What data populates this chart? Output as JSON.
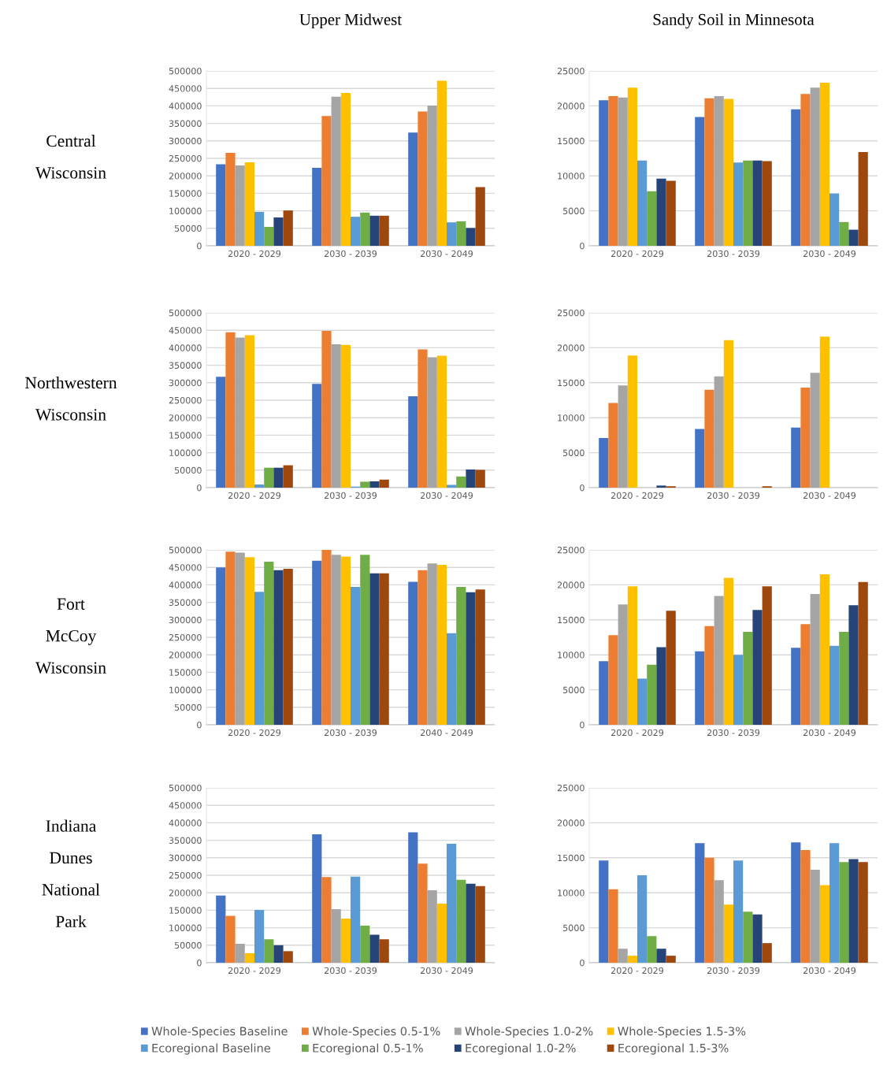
{
  "chart_data": [
    {
      "type": "bar",
      "legend": "bottom",
      "title": "Upper Midwest",
      "ylabel": "Central Wisconsin",
      "categories": [
        "2020 - 2029",
        "2030 - 2039",
        "2030 - 2049"
      ],
      "ylim": [
        0,
        500000
      ],
      "yticks": [
        0,
        50000,
        100000,
        150000,
        200000,
        250000,
        300000,
        350000,
        400000,
        450000,
        500000
      ],
      "grid": "y",
      "series": [
        {
          "name": "Whole-Species Baseline",
          "color": "#4472c4",
          "values": [
            233000,
            223000,
            324000
          ]
        },
        {
          "name": "Whole-Species 0.5-1%",
          "color": "#ed7d31",
          "values": [
            266000,
            371000,
            384000
          ]
        },
        {
          "name": "Whole-Species 1.0-2%",
          "color": "#a5a5a5",
          "values": [
            230000,
            426000,
            401000
          ]
        },
        {
          "name": "Whole-Species 1.5-3%",
          "color": "#ffc000",
          "values": [
            239000,
            437000,
            472000
          ]
        },
        {
          "name": "Ecoregional Baseline",
          "color": "#5b9bd5",
          "values": [
            97000,
            83000,
            67000
          ]
        },
        {
          "name": "Ecoregional 0.5-1%",
          "color": "#70ad47",
          "values": [
            54000,
            95000,
            70000
          ]
        },
        {
          "name": "Ecoregional 1.0-2%",
          "color": "#264478",
          "values": [
            81000,
            86000,
            51000
          ]
        },
        {
          "name": "Ecoregional 1.5-3%",
          "color": "#9e480e",
          "values": [
            101000,
            86000,
            168000
          ]
        }
      ]
    },
    {
      "type": "bar",
      "title": "Sandy Soil in Minnesota",
      "categories": [
        "2020 - 2029",
        "2030 - 2039",
        "2030 - 2049"
      ],
      "ylim": [
        0,
        25000
      ],
      "yticks": [
        0,
        5000,
        10000,
        15000,
        20000,
        25000
      ],
      "grid": "y",
      "series": [
        {
          "color": "#4472c4",
          "values": [
            20800,
            18400,
            19500
          ]
        },
        {
          "color": "#ed7d31",
          "values": [
            21400,
            21100,
            21700
          ]
        },
        {
          "color": "#a5a5a5",
          "values": [
            21200,
            21400,
            22600
          ]
        },
        {
          "color": "#ffc000",
          "values": [
            22600,
            21000,
            23300
          ]
        },
        {
          "color": "#5b9bd5",
          "values": [
            12200,
            11900,
            7500
          ]
        },
        {
          "color": "#70ad47",
          "values": [
            7800,
            12200,
            3400
          ]
        },
        {
          "color": "#264478",
          "values": [
            9600,
            12200,
            2300
          ]
        },
        {
          "color": "#9e480e",
          "values": [
            9300,
            12100,
            13400
          ]
        }
      ]
    },
    {
      "type": "bar",
      "ylabel": "Northwestern Wisconsin",
      "categories": [
        "2020 - 2029",
        "2030 - 2039",
        "2030 - 2049"
      ],
      "ylim": [
        0,
        500000
      ],
      "yticks": [
        0,
        50000,
        100000,
        150000,
        200000,
        250000,
        300000,
        350000,
        400000,
        450000,
        500000
      ],
      "grid": "y",
      "series": [
        {
          "color": "#4472c4",
          "values": [
            317000,
            297000,
            261000
          ]
        },
        {
          "color": "#ed7d31",
          "values": [
            444000,
            448000,
            395000
          ]
        },
        {
          "color": "#a5a5a5",
          "values": [
            429000,
            410000,
            373000
          ]
        },
        {
          "color": "#ffc000",
          "values": [
            436000,
            408000,
            377000
          ]
        },
        {
          "color": "#5b9bd5",
          "values": [
            9000,
            3000,
            8000
          ]
        },
        {
          "color": "#70ad47",
          "values": [
            57000,
            17000,
            32000
          ]
        },
        {
          "color": "#264478",
          "values": [
            57000,
            18000,
            52000
          ]
        },
        {
          "color": "#9e480e",
          "values": [
            64000,
            23000,
            51000
          ]
        }
      ]
    },
    {
      "type": "bar",
      "categories": [
        "2020 - 2029",
        "2030 - 2039",
        "2030 - 2049"
      ],
      "ylim": [
        0,
        25000
      ],
      "yticks": [
        0,
        5000,
        10000,
        15000,
        20000,
        25000
      ],
      "grid": "y",
      "series": [
        {
          "color": "#4472c4",
          "values": [
            7100,
            8400,
            8600
          ]
        },
        {
          "color": "#ed7d31",
          "values": [
            12100,
            14000,
            14300
          ]
        },
        {
          "color": "#a5a5a5",
          "values": [
            14600,
            15900,
            16400
          ]
        },
        {
          "color": "#ffc000",
          "values": [
            18900,
            21100,
            21600
          ]
        },
        {
          "color": "#5b9bd5",
          "values": [
            0,
            0,
            0
          ]
        },
        {
          "color": "#70ad47",
          "values": [
            0,
            0,
            0
          ]
        },
        {
          "color": "#264478",
          "values": [
            300,
            0,
            0
          ]
        },
        {
          "color": "#9e480e",
          "values": [
            200,
            200,
            0
          ]
        }
      ]
    },
    {
      "type": "bar",
      "ylabel": "Fort McCoy Wisconsin",
      "categories": [
        "2020 - 2029",
        "2030 - 2039",
        "2040 - 2049"
      ],
      "ylim": [
        0,
        500000
      ],
      "yticks": [
        0,
        50000,
        100000,
        150000,
        200000,
        250000,
        300000,
        350000,
        400000,
        450000,
        500000
      ],
      "grid": "y",
      "series": [
        {
          "color": "#4472c4",
          "values": [
            450000,
            469000,
            409000
          ]
        },
        {
          "color": "#ed7d31",
          "values": [
            495000,
            500000,
            442000
          ]
        },
        {
          "color": "#a5a5a5",
          "values": [
            492000,
            486000,
            461000
          ]
        },
        {
          "color": "#ffc000",
          "values": [
            479000,
            481000,
            457000
          ]
        },
        {
          "color": "#5b9bd5",
          "values": [
            380000,
            394000,
            262000
          ]
        },
        {
          "color": "#70ad47",
          "values": [
            466000,
            486000,
            394000
          ]
        },
        {
          "color": "#264478",
          "values": [
            442000,
            433000,
            379000
          ]
        },
        {
          "color": "#9e480e",
          "values": [
            446000,
            433000,
            387000
          ]
        }
      ]
    },
    {
      "type": "bar",
      "categories": [
        "2020 - 2029",
        "2030 - 2039",
        "2030 - 2049"
      ],
      "ylim": [
        0,
        25000
      ],
      "yticks": [
        0,
        5000,
        10000,
        15000,
        20000,
        25000
      ],
      "grid": "y",
      "series": [
        {
          "color": "#4472c4",
          "values": [
            9100,
            10500,
            11000
          ]
        },
        {
          "color": "#ed7d31",
          "values": [
            12800,
            14100,
            14400
          ]
        },
        {
          "color": "#a5a5a5",
          "values": [
            17200,
            18400,
            18700
          ]
        },
        {
          "color": "#ffc000",
          "values": [
            19800,
            21000,
            21500
          ]
        },
        {
          "color": "#5b9bd5",
          "values": [
            6600,
            10000,
            11300
          ]
        },
        {
          "color": "#70ad47",
          "values": [
            8600,
            13300,
            13300
          ]
        },
        {
          "color": "#264478",
          "values": [
            11100,
            16400,
            17100
          ]
        },
        {
          "color": "#9e480e",
          "values": [
            16300,
            19800,
            20400
          ]
        }
      ]
    },
    {
      "type": "bar",
      "ylabel": "Indiana Dunes National Park",
      "categories": [
        "2020 - 2029",
        "2030 - 2039",
        "2030 - 2049"
      ],
      "ylim": [
        0,
        500000
      ],
      "yticks": [
        0,
        50000,
        100000,
        150000,
        200000,
        250000,
        300000,
        350000,
        400000,
        450000,
        500000
      ],
      "grid": "y",
      "series": [
        {
          "color": "#4472c4",
          "values": [
            192000,
            367000,
            373000
          ]
        },
        {
          "color": "#ed7d31",
          "values": [
            134000,
            245000,
            283000
          ]
        },
        {
          "color": "#a5a5a5",
          "values": [
            54000,
            153000,
            207000
          ]
        },
        {
          "color": "#ffc000",
          "values": [
            27000,
            126000,
            169000
          ]
        },
        {
          "color": "#5b9bd5",
          "values": [
            151000,
            246000,
            340000
          ]
        },
        {
          "color": "#70ad47",
          "values": [
            67000,
            106000,
            237000
          ]
        },
        {
          "color": "#264478",
          "values": [
            50000,
            80000,
            226000
          ]
        },
        {
          "color": "#9e480e",
          "values": [
            33000,
            67000,
            219000
          ]
        }
      ]
    },
    {
      "type": "bar",
      "categories": [
        "2020 - 2029",
        "2030 - 2039",
        "2030 - 2049"
      ],
      "ylim": [
        0,
        25000
      ],
      "yticks": [
        0,
        5000,
        10000,
        15000,
        20000,
        25000
      ],
      "grid": "y",
      "series": [
        {
          "color": "#4472c4",
          "values": [
            14600,
            17100,
            17200
          ]
        },
        {
          "color": "#ed7d31",
          "values": [
            10500,
            15000,
            16100
          ]
        },
        {
          "color": "#a5a5a5",
          "values": [
            2000,
            11800,
            13300
          ]
        },
        {
          "color": "#ffc000",
          "values": [
            1000,
            8300,
            11100
          ]
        },
        {
          "color": "#5b9bd5",
          "values": [
            12500,
            14600,
            17100
          ]
        },
        {
          "color": "#70ad47",
          "values": [
            3800,
            7300,
            14400
          ]
        },
        {
          "color": "#264478",
          "values": [
            2000,
            6900,
            14800
          ]
        },
        {
          "color": "#9e480e",
          "values": [
            1000,
            2800,
            14400
          ]
        }
      ]
    }
  ]
}
